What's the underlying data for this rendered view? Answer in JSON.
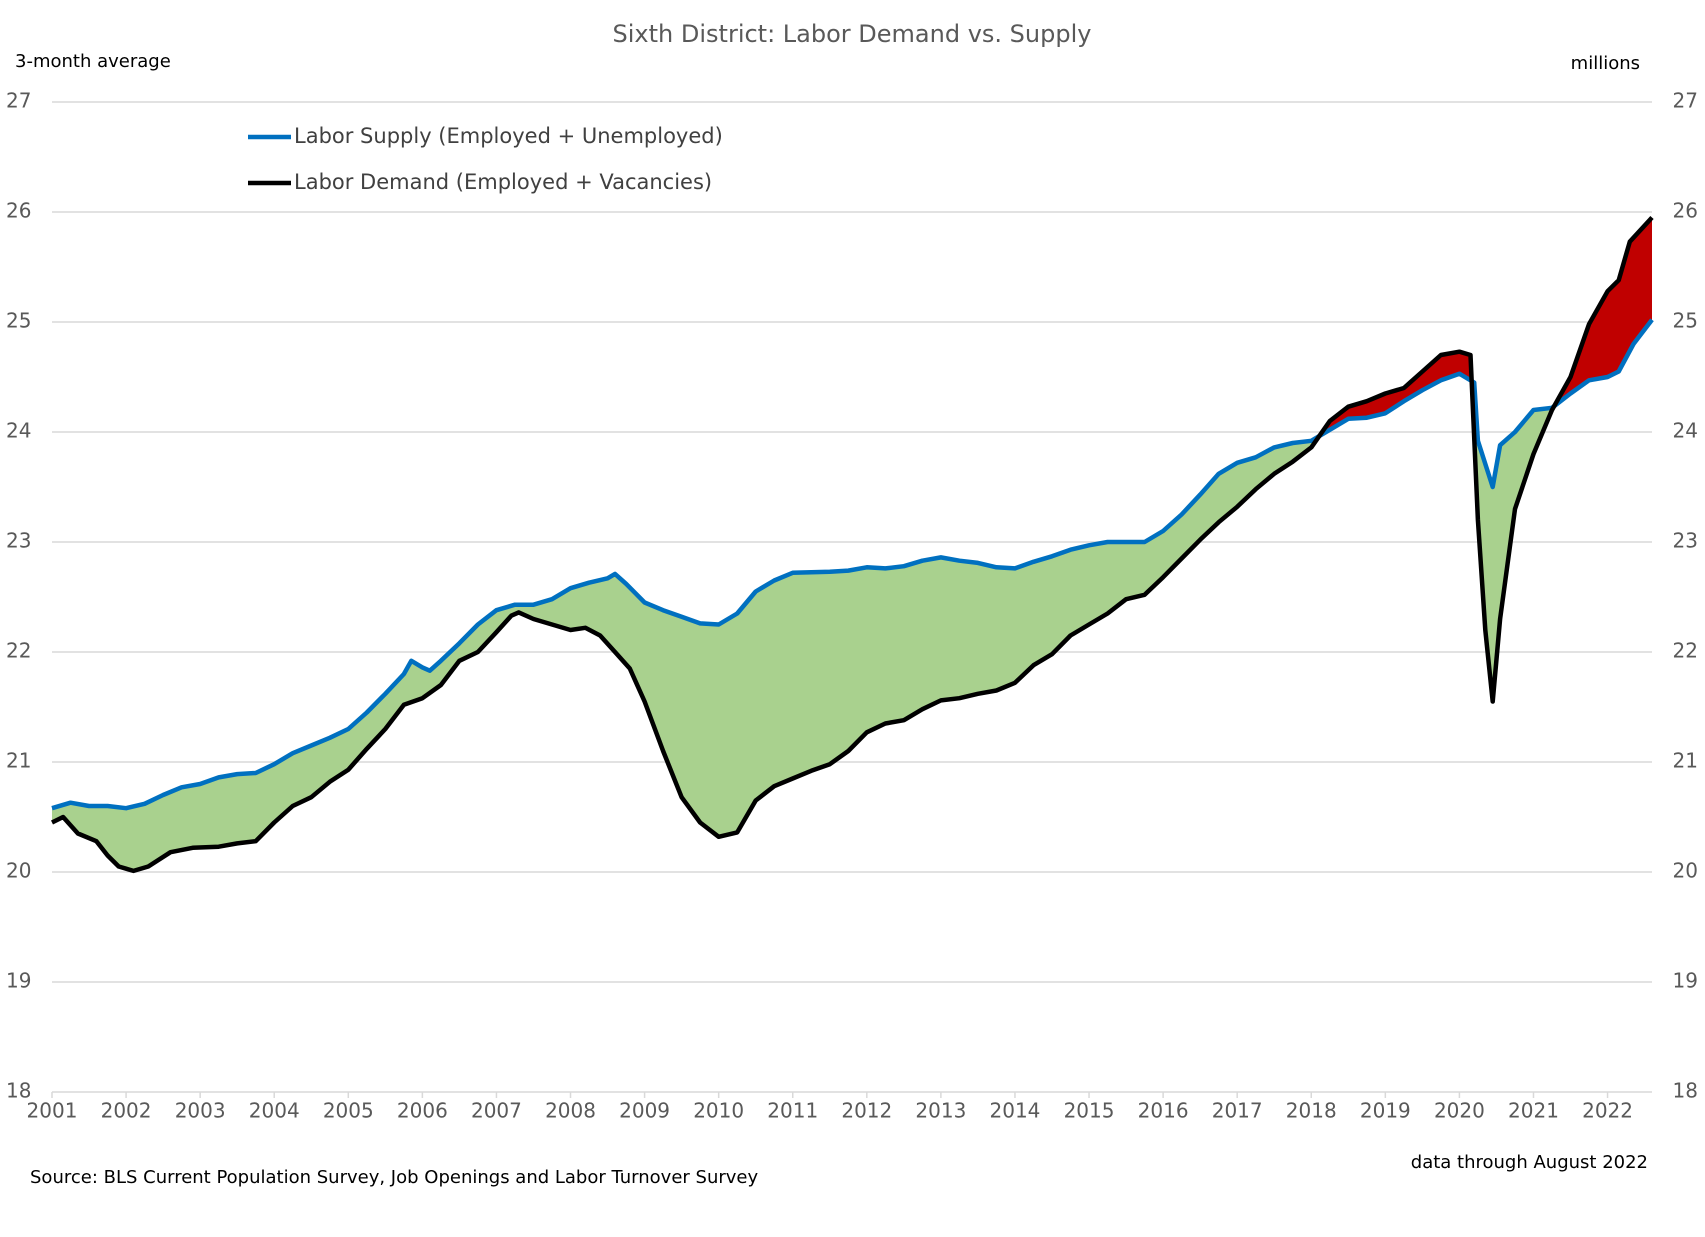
{
  "chart_data": {
    "type": "line",
    "title": "Sixth District: Labor Demand vs. Supply",
    "y_label": "3-month average",
    "y2_label": "millions",
    "source": "Source: BLS Current Population Survey, Job Openings and Labor Turnover Survey",
    "annotation": "data through August 2022",
    "xlim": [
      2001,
      2022.6
    ],
    "xticks": [
      2001,
      2002,
      2003,
      2004,
      2005,
      2006,
      2007,
      2008,
      2009,
      2010,
      2011,
      2012,
      2013,
      2014,
      2015,
      2016,
      2017,
      2018,
      2019,
      2020,
      2021,
      2022
    ],
    "ylim": [
      18,
      27
    ],
    "yticks": [
      18,
      19,
      20,
      21,
      22,
      23,
      24,
      25,
      26,
      27
    ],
    "y2lim": [
      18,
      27
    ],
    "y2ticks": [
      18,
      19,
      20,
      21,
      22,
      23,
      24,
      25,
      26,
      27
    ],
    "grid": true,
    "legend": "top-left",
    "fill_below_color": "#a9d18e",
    "fill_above_color": "#c00000",
    "series": [
      {
        "name": "Labor Supply (Employed + Unemployed)",
        "color": "#0070c0",
        "x": [
          2001.0,
          2001.25,
          2001.5,
          2001.75,
          2002.0,
          2002.25,
          2002.5,
          2002.75,
          2003.0,
          2003.25,
          2003.5,
          2003.75,
          2004.0,
          2004.25,
          2004.5,
          2004.75,
          2005.0,
          2005.25,
          2005.5,
          2005.75,
          2005.85,
          2006.0,
          2006.1,
          2006.25,
          2006.5,
          2006.75,
          2007.0,
          2007.25,
          2007.5,
          2007.75,
          2008.0,
          2008.25,
          2008.5,
          2008.6,
          2008.75,
          2009.0,
          2009.25,
          2009.5,
          2009.75,
          2010.0,
          2010.25,
          2010.5,
          2010.75,
          2011.0,
          2011.5,
          2011.75,
          2012.0,
          2012.25,
          2012.5,
          2012.75,
          2013.0,
          2013.25,
          2013.5,
          2013.75,
          2014.0,
          2014.25,
          2014.5,
          2014.75,
          2015.0,
          2015.25,
          2015.75,
          2016.0,
          2016.25,
          2016.5,
          2016.75,
          2017.0,
          2017.25,
          2017.5,
          2017.75,
          2018.0,
          2018.25,
          2018.5,
          2018.75,
          2019.0,
          2019.25,
          2019.5,
          2019.75,
          2020.0,
          2020.2,
          2020.25,
          2020.45,
          2020.55,
          2020.75,
          2021.0,
          2021.25,
          2021.5,
          2021.75,
          2022.0,
          2022.15,
          2022.35,
          2022.6
        ],
        "values": [
          20.58,
          20.63,
          20.6,
          20.6,
          20.58,
          20.62,
          20.7,
          20.77,
          20.8,
          20.86,
          20.89,
          20.9,
          20.98,
          21.08,
          21.15,
          21.22,
          21.3,
          21.45,
          21.62,
          21.8,
          21.92,
          21.86,
          21.83,
          21.92,
          22.08,
          22.25,
          22.38,
          22.43,
          22.43,
          22.48,
          22.58,
          22.63,
          22.67,
          22.71,
          22.62,
          22.45,
          22.38,
          22.32,
          22.26,
          22.25,
          22.35,
          22.55,
          22.65,
          22.72,
          22.73,
          22.74,
          22.77,
          22.76,
          22.78,
          22.83,
          22.86,
          22.83,
          22.81,
          22.77,
          22.76,
          22.82,
          22.87,
          22.93,
          22.97,
          23.0,
          23.0,
          23.1,
          23.25,
          23.43,
          23.62,
          23.72,
          23.77,
          23.86,
          23.9,
          23.92,
          24.02,
          24.12,
          24.13,
          24.17,
          24.28,
          24.38,
          24.47,
          24.53,
          24.45,
          23.92,
          23.5,
          23.88,
          24.0,
          24.2,
          24.22,
          24.35,
          24.47,
          24.5,
          24.55,
          24.8,
          25.02
        ]
      },
      {
        "name": "Labor Demand (Employed + Vacancies)",
        "color": "#000000",
        "x": [
          2001.0,
          2001.15,
          2001.35,
          2001.6,
          2001.75,
          2001.9,
          2002.1,
          2002.3,
          2002.6,
          2002.9,
          2003.25,
          2003.5,
          2003.75,
          2004.0,
          2004.25,
          2004.5,
          2004.75,
          2005.0,
          2005.25,
          2005.5,
          2005.75,
          2006.0,
          2006.25,
          2006.5,
          2006.75,
          2007.0,
          2007.2,
          2007.3,
          2007.5,
          2007.75,
          2008.0,
          2008.2,
          2008.4,
          2008.6,
          2008.8,
          2009.0,
          2009.25,
          2009.5,
          2009.75,
          2010.0,
          2010.25,
          2010.5,
          2010.75,
          2011.0,
          2011.25,
          2011.5,
          2011.75,
          2012.0,
          2012.25,
          2012.5,
          2012.75,
          2013.0,
          2013.25,
          2013.5,
          2013.75,
          2014.0,
          2014.25,
          2014.5,
          2014.75,
          2015.0,
          2015.25,
          2015.5,
          2015.75,
          2016.0,
          2016.25,
          2016.5,
          2016.75,
          2017.0,
          2017.25,
          2017.5,
          2017.75,
          2018.0,
          2018.25,
          2018.5,
          2018.75,
          2019.0,
          2019.25,
          2019.5,
          2019.75,
          2020.0,
          2020.15,
          2020.25,
          2020.35,
          2020.45,
          2020.55,
          2020.75,
          2021.0,
          2021.25,
          2021.5,
          2021.75,
          2022.0,
          2022.15,
          2022.3,
          2022.6
        ],
        "values": [
          20.45,
          20.5,
          20.35,
          20.28,
          20.15,
          20.05,
          20.01,
          20.05,
          20.18,
          20.22,
          20.23,
          20.26,
          20.28,
          20.45,
          20.6,
          20.68,
          20.82,
          20.93,
          21.12,
          21.3,
          21.52,
          21.58,
          21.7,
          21.92,
          22.0,
          22.18,
          22.33,
          22.36,
          22.3,
          22.25,
          22.2,
          22.22,
          22.15,
          22.0,
          21.85,
          21.55,
          21.1,
          20.68,
          20.45,
          20.32,
          20.36,
          20.65,
          20.78,
          20.85,
          20.92,
          20.98,
          21.1,
          21.27,
          21.35,
          21.38,
          21.48,
          21.56,
          21.58,
          21.62,
          21.65,
          21.72,
          21.88,
          21.98,
          22.15,
          22.25,
          22.35,
          22.48,
          22.52,
          22.68,
          22.85,
          23.02,
          23.18,
          23.32,
          23.48,
          23.62,
          23.73,
          23.86,
          24.1,
          24.23,
          24.28,
          24.35,
          24.4,
          24.55,
          24.7,
          24.73,
          24.7,
          23.2,
          22.2,
          21.55,
          22.3,
          23.3,
          23.8,
          24.2,
          24.5,
          24.98,
          25.28,
          25.38,
          25.73,
          25.95
        ]
      }
    ]
  }
}
